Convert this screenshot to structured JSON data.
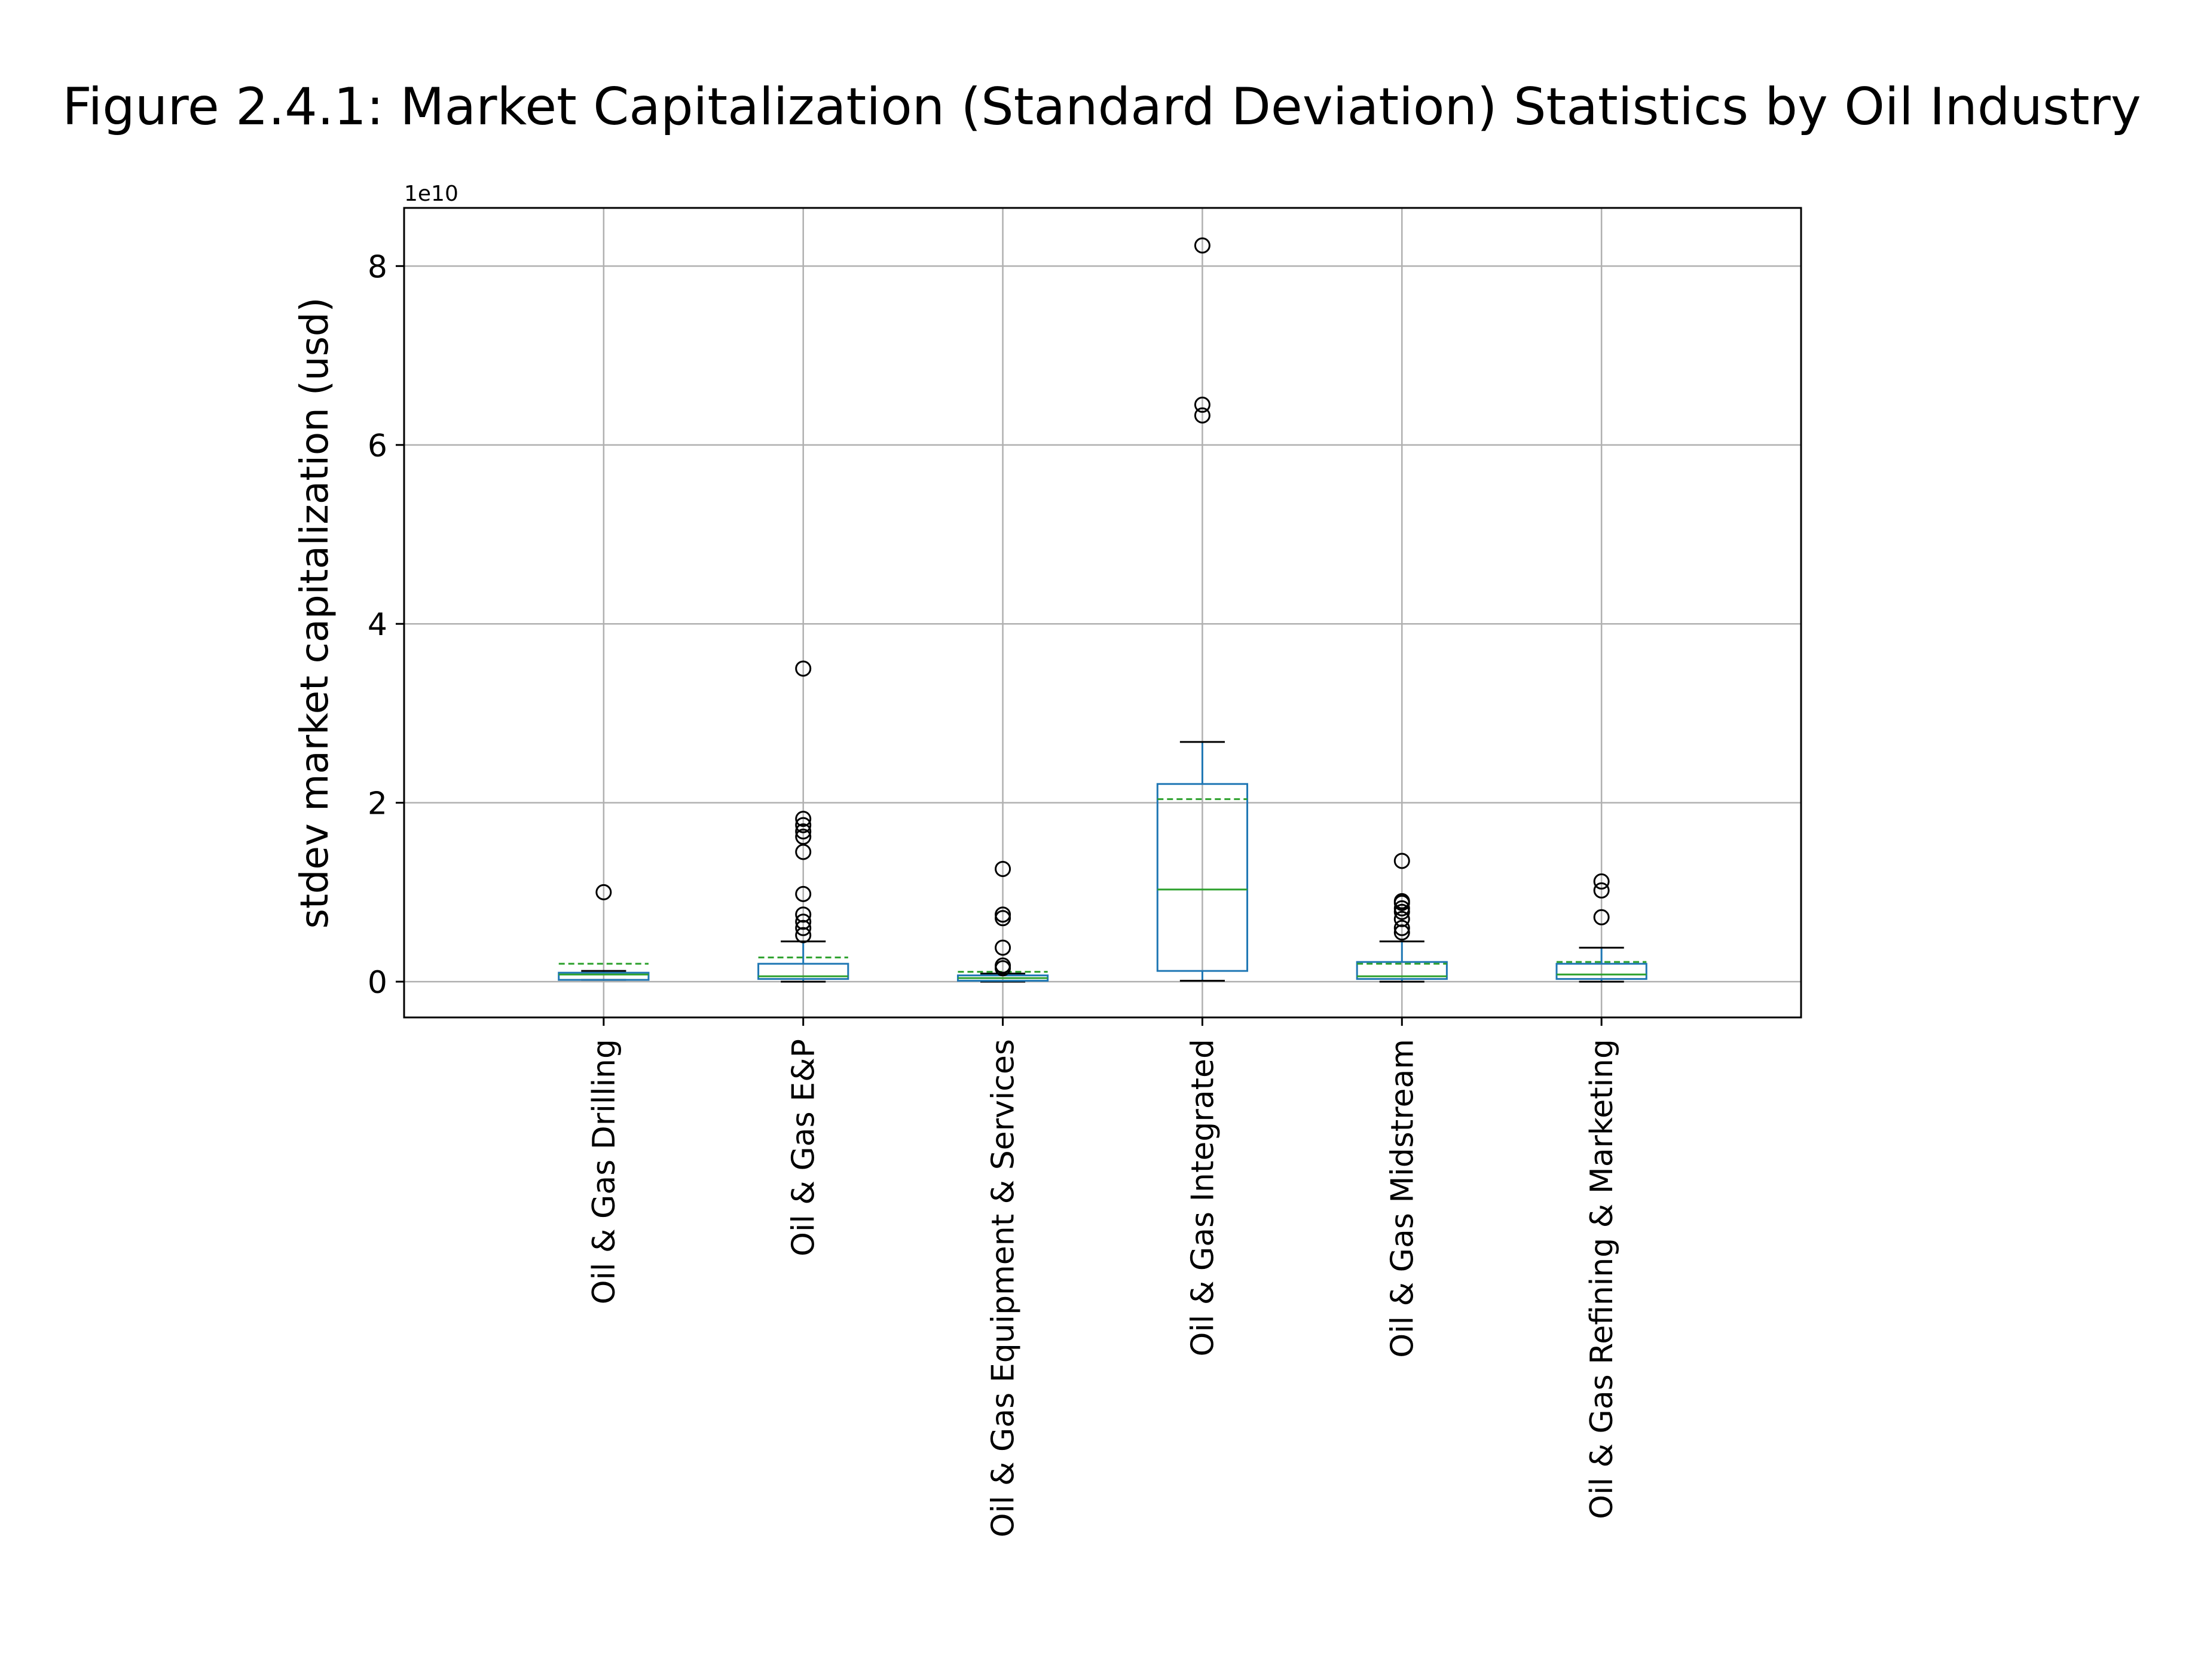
{
  "chart_data": {
    "type": "box",
    "title": "Figure 2.4.1: Market Capitalization (Standard Deviation) Statistics by Oil Industry",
    "xlabel": "",
    "ylabel": "stdev market capitalization (usd)",
    "y_offset_label": "1e10",
    "y_scale_exponent": 10,
    "ylim": [
      -0.4,
      8.65
    ],
    "yticks": [
      0,
      2,
      4,
      6,
      8
    ],
    "ytick_labels": [
      "0",
      "2",
      "4",
      "6",
      "8"
    ],
    "grid": true,
    "show_means": true,
    "mean_style": "dashed-line",
    "categories": [
      "Oil & Gas Drilling",
      "Oil & Gas E&P",
      "Oil & Gas Equipment & Services",
      "Oil & Gas Integrated",
      "Oil & Gas Midstream",
      "Oil & Gas Refining & Marketing"
    ],
    "boxes": [
      {
        "label": "Oil & Gas Drilling",
        "whislo": 0.02,
        "q1": 0.02,
        "med": 0.08,
        "q3": 0.1,
        "whishi": 0.12,
        "mean": 0.2,
        "fliers": [
          1.0
        ]
      },
      {
        "label": "Oil & Gas E&P",
        "whislo": 0.0,
        "q1": 0.03,
        "med": 0.06,
        "q3": 0.2,
        "whishi": 0.45,
        "mean": 0.27,
        "fliers": [
          0.52,
          0.6,
          0.67,
          0.75,
          0.98,
          1.45,
          1.62,
          1.68,
          1.75,
          1.82,
          3.5
        ]
      },
      {
        "label": "Oil & Gas Equipment & Services",
        "whislo": 0.0,
        "q1": 0.01,
        "med": 0.04,
        "q3": 0.07,
        "whishi": 0.09,
        "mean": 0.11,
        "fliers": [
          0.15,
          0.18,
          0.38,
          0.71,
          0.75,
          1.26
        ]
      },
      {
        "label": "Oil & Gas Integrated",
        "whislo": 0.01,
        "q1": 0.12,
        "med": 1.03,
        "q3": 2.21,
        "whishi": 2.68,
        "mean": 2.04,
        "fliers": [
          6.33,
          6.45,
          8.23
        ]
      },
      {
        "label": "Oil & Gas Midstream",
        "whislo": 0.0,
        "q1": 0.03,
        "med": 0.06,
        "q3": 0.22,
        "whishi": 0.45,
        "mean": 0.2,
        "fliers": [
          0.55,
          0.6,
          0.7,
          0.78,
          0.82,
          0.88,
          0.9,
          1.35
        ]
      },
      {
        "label": "Oil & Gas Refining & Marketing",
        "whislo": 0.0,
        "q1": 0.03,
        "med": 0.08,
        "q3": 0.2,
        "whishi": 0.38,
        "mean": 0.22,
        "fliers": [
          0.72,
          1.02,
          1.12
        ]
      }
    ],
    "colors": {
      "box": "#1f77b4",
      "median": "#2ca02c",
      "mean": "#2ca02c",
      "whisker": "#1f77b4",
      "cap": "#000000",
      "flier": "#000000",
      "grid": "#b0b0b0",
      "axes": "#000000"
    }
  }
}
